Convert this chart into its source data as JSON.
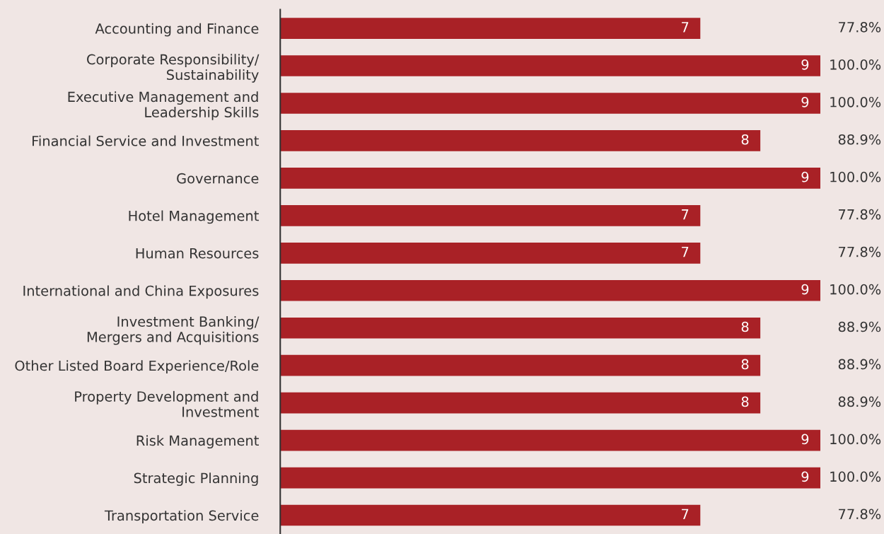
{
  "chart_data": {
    "type": "bar",
    "orientation": "horizontal",
    "categories": [
      "Accounting and Finance",
      "Corporate Responsibility/\nSustainability",
      "Executive Management and\nLeadership Skills",
      "Financial Service and Investment",
      "Governance",
      "Hotel Management",
      "Human Resources",
      "International and China Exposures",
      "Investment Banking/\nMergers and Acquisitions",
      "Other Listed Board Experience/Role",
      "Property Development and\nInvestment",
      "Risk Management",
      "Strategic Planning",
      "Transportation Service"
    ],
    "values": [
      7,
      9,
      9,
      8,
      9,
      7,
      7,
      9,
      8,
      8,
      8,
      9,
      9,
      7
    ],
    "color": "#a92126",
    "data_labels": true,
    "annotations": [
      "77.8%",
      "100.0%",
      "100.0%",
      "88.9%",
      "100.0%",
      "77.8%",
      "77.8%",
      "100.0%",
      "88.9%",
      "88.9%",
      "88.9%",
      "100.0%",
      "100.0%",
      "77.8%"
    ],
    "tick_labels": "y",
    "grid": false,
    "legend": false
  }
}
